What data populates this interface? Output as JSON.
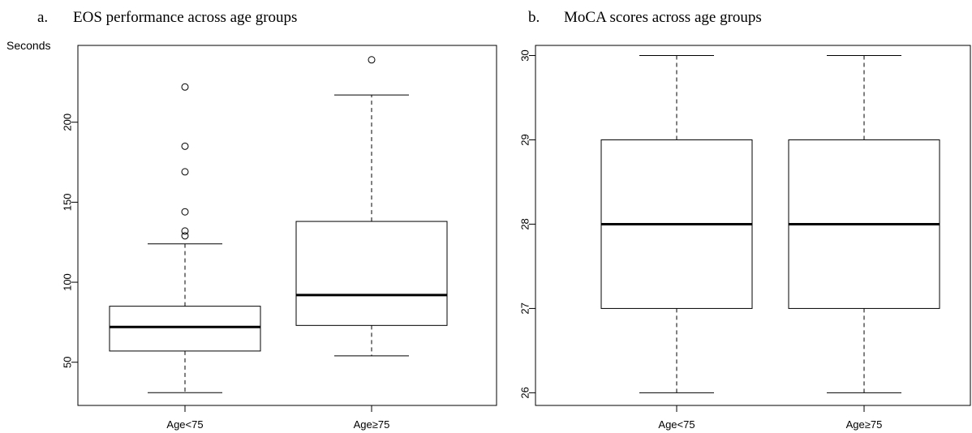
{
  "chart_data": [
    {
      "type": "box",
      "panel_label": "a.",
      "title": "EOS performance across age groups",
      "ylabel": "Seconds",
      "xlabel": "",
      "ylim": [
        23,
        248
      ],
      "yticks": [
        "50",
        "100",
        "150",
        "200"
      ],
      "grid": false,
      "categories": [
        "Age<75",
        "Age≥75"
      ],
      "boxes": [
        {
          "whisker_low": 31,
          "q1": 57,
          "median": 72,
          "q3": 85,
          "whisker_high": 124,
          "outliers": [
            129,
            132,
            144,
            169,
            185,
            222
          ]
        },
        {
          "whisker_low": 54,
          "q1": 73,
          "median": 92,
          "q3": 138,
          "whisker_high": 217,
          "outliers": [
            239
          ]
        }
      ]
    },
    {
      "type": "box",
      "panel_label": "b.",
      "title": "MoCA scores across age groups",
      "ylabel": "",
      "xlabel": "",
      "ylim": [
        25.85,
        30.12
      ],
      "yticks": [
        "26",
        "27",
        "28",
        "29",
        "30"
      ],
      "grid": false,
      "categories": [
        "Age<75",
        "Age≥75"
      ],
      "boxes": [
        {
          "whisker_low": 26,
          "q1": 27,
          "median": 28,
          "q3": 29,
          "whisker_high": 30,
          "outliers": []
        },
        {
          "whisker_low": 26,
          "q1": 27,
          "median": 28,
          "q3": 29,
          "whisker_high": 30,
          "outliers": []
        }
      ]
    }
  ]
}
